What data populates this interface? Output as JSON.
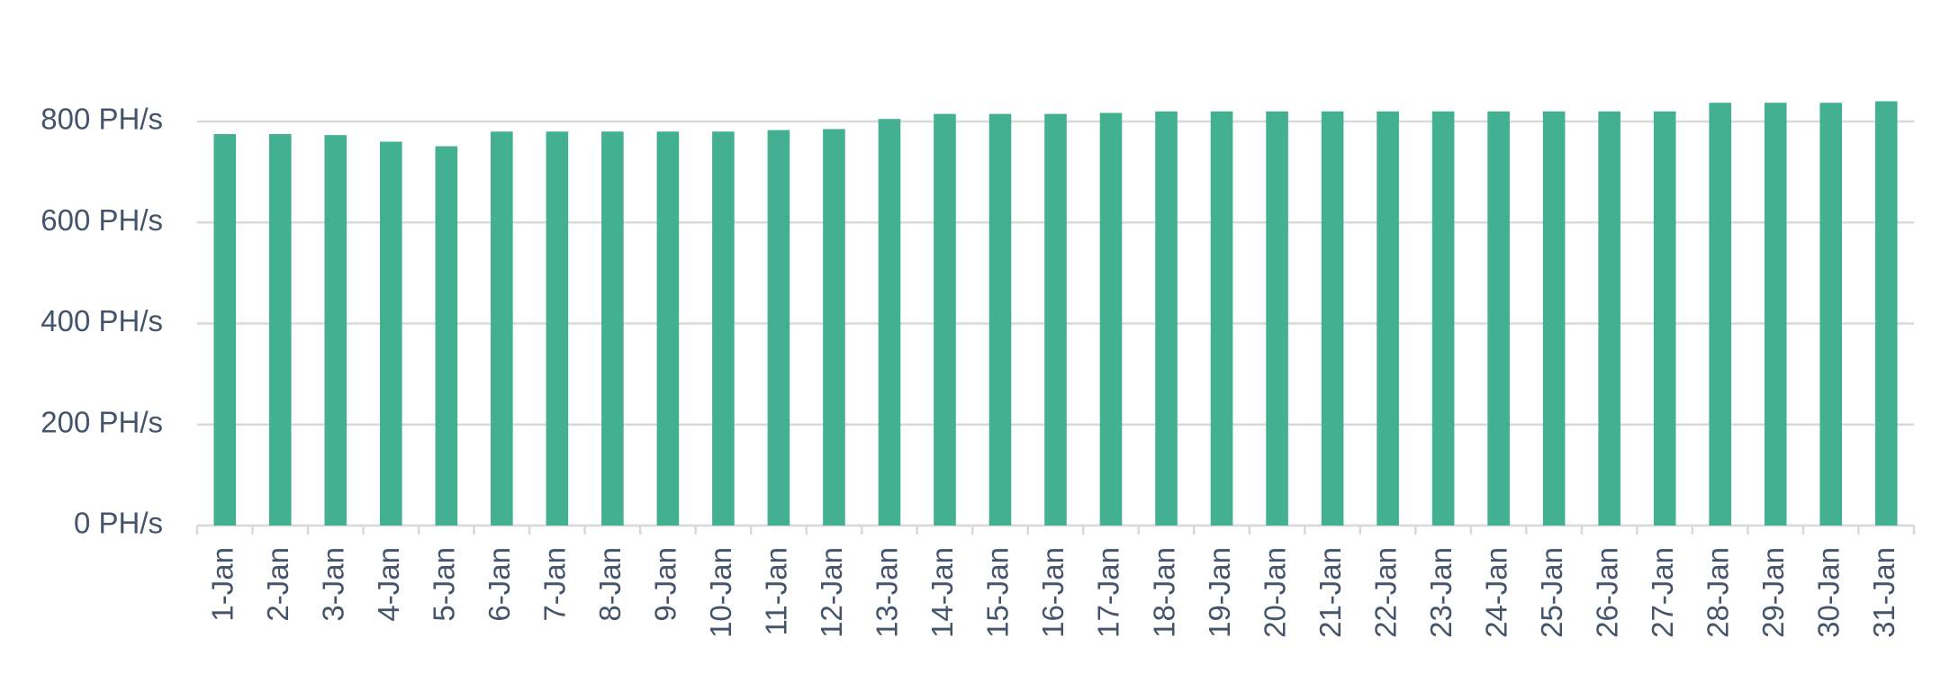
{
  "chart_data": {
    "type": "bar",
    "categories": [
      "1-Jan",
      "2-Jan",
      "3-Jan",
      "4-Jan",
      "5-Jan",
      "6-Jan",
      "7-Jan",
      "8-Jan",
      "9-Jan",
      "10-Jan",
      "11-Jan",
      "12-Jan",
      "13-Jan",
      "14-Jan",
      "15-Jan",
      "16-Jan",
      "17-Jan",
      "18-Jan",
      "19-Jan",
      "20-Jan",
      "21-Jan",
      "22-Jan",
      "23-Jan",
      "24-Jan",
      "25-Jan",
      "26-Jan",
      "27-Jan",
      "28-Jan",
      "29-Jan",
      "30-Jan",
      "31-Jan"
    ],
    "values": [
      775,
      775,
      773,
      760,
      751,
      780,
      780,
      780,
      780,
      780,
      783,
      785,
      805,
      815,
      815,
      815,
      817,
      820,
      820,
      820,
      820,
      820,
      820,
      820,
      820,
      820,
      820,
      837,
      837,
      837,
      840
    ],
    "color": "#43b092",
    "ylim": [
      0,
      800
    ],
    "yticks": [
      {
        "value": 0,
        "label": "0 PH/s"
      },
      {
        "value": 200,
        "label": "200 PH/s"
      },
      {
        "value": 400,
        "label": "400 PH/s"
      },
      {
        "value": 600,
        "label": "600 PH/s"
      },
      {
        "value": 800,
        "label": "800 PH/s"
      }
    ],
    "grid": true
  }
}
